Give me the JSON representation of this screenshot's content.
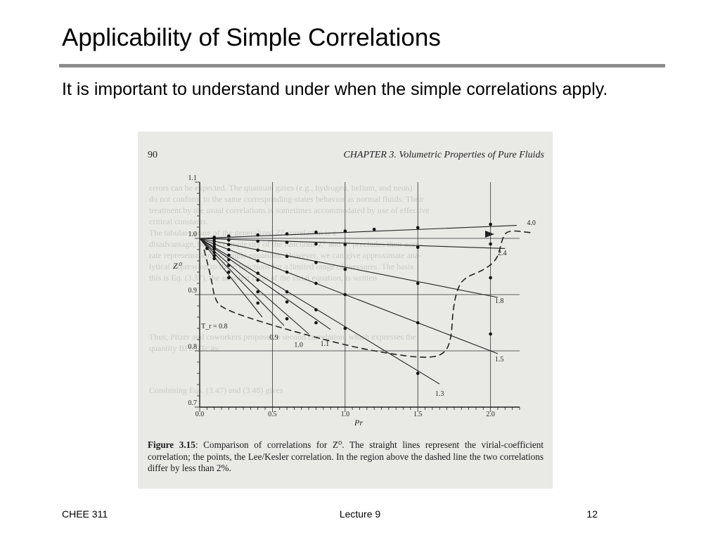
{
  "slide": {
    "title": "Applicability of Simple Correlations",
    "body": "It is important to understand under when the simple correlations apply."
  },
  "figure": {
    "page_number": "90",
    "chapter_header": "CHAPTER 3.   Volumetric Properties of Pure Fluids",
    "caption_label": "Figure 3.15",
    "caption_text": ": Comparison of correlations for Z⁰. The straight lines represent the virial-coefficient correlation; the points, the Lee/Kesler correlation. In the region above the dashed line the two correlations differ by less than 2%.",
    "ghost_lines": [
      "errors can be expected. The quantum gases (e.g., hydrogen, helium, and neon)",
      "do not conform to the same corresponding-states behavior as normal fluids. Their",
      "treatment by the usual correlations is sometimes accommodated by use of effective",
      "critical constants.",
      "The tabular nature of the generalized Z⁰ correlation is a",
      "disadvantage, but the complexity of the functions Z⁰ and Z¹ precludes their accu-",
      "rate representation by simple equations. However, we can give approximate ana-",
      "lytical expression to these functions for a limited range of pressures. The basis",
      "this is Eq. (3.37), the simplest form of the virial equation, is written",
      "Thus, Pitzer and coworkers proposed a second correlation, which expresses the",
      "quantity BPc/RTc as:",
      "Combining Eqs. (3.47) and (3.48) gives"
    ]
  },
  "chart_data": {
    "type": "line",
    "title": "",
    "xlabel": "Pr",
    "ylabel": "Z⁰",
    "xlim": [
      0.0,
      2.2
    ],
    "ylim": [
      0.7,
      1.1
    ],
    "x_ticks": [
      "0.0",
      "0.5",
      "1.0",
      "1.5",
      "2.0"
    ],
    "y_ticks": [
      "0.7",
      "0.8",
      "0.9",
      "1.0",
      "1.1"
    ],
    "grid": true,
    "series": [
      {
        "name": "4.0",
        "label_x": 2.25,
        "label_y": 1.024,
        "line": [
          [
            0,
            1.0
          ],
          [
            2.18,
            1.023
          ]
        ],
        "points": [
          [
            0.1,
            1.002
          ],
          [
            0.2,
            1.004
          ],
          [
            0.4,
            1.006
          ],
          [
            0.6,
            1.008
          ],
          [
            0.8,
            1.011
          ],
          [
            1.0,
            1.013
          ],
          [
            1.2,
            1.016
          ],
          [
            1.5,
            1.019
          ],
          [
            2.0,
            1.025
          ]
        ]
      },
      {
        "name": "2.4",
        "label_x": 2.05,
        "label_y": 0.97,
        "line": [
          [
            0,
            1.0
          ],
          [
            2.1,
            0.982
          ]
        ],
        "points": [
          [
            0.1,
            0.999
          ],
          [
            0.2,
            0.997
          ],
          [
            0.4,
            0.995
          ],
          [
            0.6,
            0.993
          ],
          [
            0.8,
            0.99
          ],
          [
            1.0,
            0.989
          ],
          [
            1.5,
            0.984
          ],
          [
            2.0,
            0.99
          ]
        ]
      },
      {
        "name": "1.8",
        "label_x": 2.03,
        "label_y": 0.885,
        "line": [
          [
            0,
            1.0
          ],
          [
            2.05,
            0.895
          ]
        ],
        "points": [
          [
            0.1,
            0.995
          ],
          [
            0.2,
            0.989
          ],
          [
            0.4,
            0.979
          ],
          [
            0.6,
            0.968
          ],
          [
            0.8,
            0.957
          ],
          [
            1.0,
            0.945
          ],
          [
            1.5,
            0.92
          ],
          [
            2.0,
            0.93
          ]
        ]
      },
      {
        "name": "1.5",
        "label_x": 2.03,
        "label_y": 0.781,
        "line": [
          [
            0,
            1.0
          ],
          [
            2.05,
            0.795
          ]
        ],
        "points": [
          [
            0.1,
            0.99
          ],
          [
            0.2,
            0.98
          ],
          [
            0.4,
            0.96
          ],
          [
            0.6,
            0.94
          ],
          [
            0.8,
            0.92
          ],
          [
            1.0,
            0.9
          ],
          [
            1.5,
            0.85
          ],
          [
            2.0,
            0.83
          ]
        ]
      },
      {
        "name": "1.3",
        "label_x": 1.62,
        "label_y": 0.72,
        "line": [
          [
            0,
            1.0
          ],
          [
            1.65,
            0.741
          ]
        ],
        "points": [
          [
            0.1,
            0.985
          ],
          [
            0.2,
            0.97
          ],
          [
            0.4,
            0.938
          ],
          [
            0.6,
            0.905
          ],
          [
            0.8,
            0.873
          ],
          [
            1.0,
            0.84
          ],
          [
            1.5,
            0.76
          ]
        ]
      },
      {
        "name": "1.1",
        "label_x": 0.83,
        "label_y": 0.809,
        "line": [
          [
            0,
            1.0
          ],
          [
            0.9,
            0.838
          ]
        ],
        "points": [
          [
            0.1,
            0.981
          ],
          [
            0.2,
            0.962
          ],
          [
            0.4,
            0.926
          ],
          [
            0.6,
            0.887
          ],
          [
            0.8,
            0.85
          ]
        ]
      },
      {
        "name": "1.0",
        "label_x": 0.65,
        "label_y": 0.807,
        "line": [
          [
            0,
            1.0
          ],
          [
            0.75,
            0.83
          ]
        ],
        "points": [
          [
            0.1,
            0.975
          ],
          [
            0.2,
            0.952
          ],
          [
            0.4,
            0.905
          ],
          [
            0.6,
            0.857
          ]
        ]
      },
      {
        "name": "0.9",
        "label_x": 0.48,
        "label_y": 0.82,
        "line": [
          [
            0,
            1.0
          ],
          [
            0.58,
            0.845
          ]
        ],
        "points": [
          [
            0.1,
            0.969
          ],
          [
            0.2,
            0.94
          ],
          [
            0.4,
            0.885
          ]
        ]
      },
      {
        "name": "T_r = 0.8",
        "label_x": 0.01,
        "label_y": 0.84,
        "line": [
          [
            0,
            1.0
          ],
          [
            0.43,
            0.86
          ]
        ],
        "points": [
          [
            0.05,
            0.982
          ],
          [
            0.1,
            0.964
          ],
          [
            0.2,
            0.93
          ]
        ]
      }
    ],
    "dashed_boundary": [
      [
        0.03,
        0.98
      ],
      [
        0.08,
        0.93
      ],
      [
        0.1,
        0.895
      ],
      [
        0.15,
        0.875
      ],
      [
        0.5,
        0.845
      ],
      [
        1.0,
        0.81
      ],
      [
        1.3,
        0.795
      ],
      [
        1.55,
        0.787
      ],
      [
        1.68,
        0.793
      ],
      [
        1.73,
        0.82
      ],
      [
        1.74,
        0.87
      ],
      [
        1.77,
        0.91
      ],
      [
        1.82,
        0.93
      ],
      [
        1.95,
        0.943
      ],
      [
        2.05,
        0.963
      ],
      [
        2.08,
        1.0
      ],
      [
        2.12,
        1.015
      ],
      [
        2.28,
        1.01
      ]
    ]
  },
  "footer": {
    "course": "CHEE 311",
    "lecture": "Lecture 9",
    "page": "12"
  }
}
